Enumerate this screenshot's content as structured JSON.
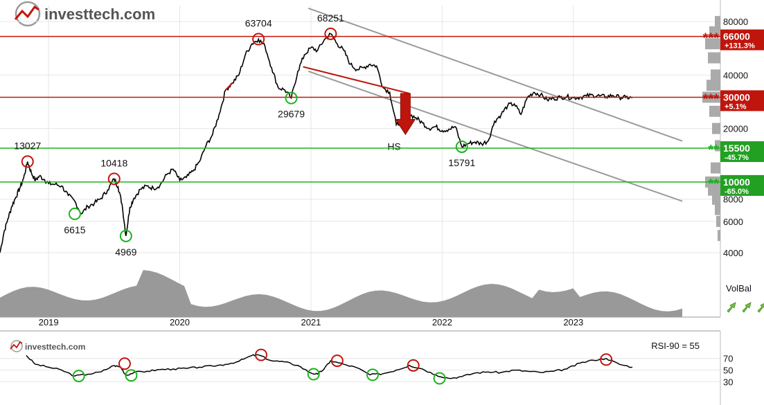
{
  "brand": {
    "name": "investtech.com",
    "name_small": "investtech.com"
  },
  "colors": {
    "price": "#000000",
    "red": "#c0150c",
    "green": "#1db31d",
    "gray": "#9a9a9a",
    "grid": "#e6e6e6",
    "resistance_bg": "#c0150c",
    "support_bg": "#22a022"
  },
  "chart_data": [
    {
      "type": "line",
      "scale": "log",
      "ylim": [
        4000,
        90000
      ],
      "y_ticks": [
        4000,
        6000,
        8000,
        10000,
        20000,
        40000,
        80000
      ],
      "x_ticks": [
        {
          "label": "2019",
          "x": 2019.0
        },
        {
          "label": "2020",
          "x": 2020.0
        },
        {
          "label": "2021",
          "x": 2021.0
        },
        {
          "label": "2022",
          "x": 2022.0
        },
        {
          "label": "2023",
          "x": 2023.0
        }
      ],
      "xlim": [
        2018.63,
        2023.83
      ],
      "series": [
        {
          "x": [
            2018.63,
            2018.66,
            2018.69,
            2018.72,
            2018.75,
            2018.78,
            2018.81,
            2018.84,
            2018.87,
            2018.9,
            2018.93,
            2018.97,
            2019.0,
            2019.05,
            2019.1,
            2019.15,
            2019.2,
            2019.25,
            2019.3,
            2019.35,
            2019.4,
            2019.45,
            2019.5,
            2019.53,
            2019.56,
            2019.59,
            2019.62,
            2019.65,
            2019.7,
            2019.75,
            2019.8,
            2019.85,
            2019.9,
            2019.95,
            2020.0,
            2020.05,
            2020.1,
            2020.15,
            2020.2,
            2020.25,
            2020.3,
            2020.35,
            2020.4,
            2020.45,
            2020.5,
            2020.55,
            2020.6,
            2020.65,
            2020.7,
            2020.75,
            2020.8,
            2020.85,
            2020.9,
            2020.95,
            2021.0,
            2021.05,
            2021.1,
            2021.15,
            2021.2,
            2021.25,
            2021.3,
            2021.35,
            2021.4,
            2021.45,
            2021.5,
            2021.55,
            2021.6,
            2021.65,
            2021.7,
            2021.75,
            2021.8,
            2021.85,
            2021.9,
            2021.95,
            2022.0,
            2022.05,
            2022.1,
            2022.15,
            2022.2,
            2022.25,
            2022.3,
            2022.35,
            2022.4,
            2022.45,
            2022.5,
            2022.55,
            2022.6,
            2022.65,
            2022.7,
            2022.75,
            2022.8,
            2022.85,
            2022.9,
            2022.95,
            2023.0,
            2023.05,
            2023.1,
            2023.15,
            2023.2,
            2023.25,
            2023.3,
            2023.35,
            2023.4,
            2023.45
          ],
          "y": [
            4000,
            5200,
            6200,
            7300,
            8200,
            9200,
            10500,
            13027,
            11200,
            10200,
            10800,
            10300,
            9800,
            9700,
            9500,
            8400,
            7800,
            6615,
            7300,
            7600,
            8100,
            9000,
            10418,
            9400,
            7500,
            4969,
            7200,
            8100,
            9100,
            9500,
            9200,
            9600,
            11000,
            11800,
            10200,
            10600,
            11500,
            13000,
            16000,
            18500,
            24000,
            33000,
            36000,
            40000,
            52000,
            60000,
            63704,
            58000,
            44000,
            34000,
            33000,
            29679,
            42000,
            52000,
            57000,
            55000,
            63000,
            68251,
            60000,
            55000,
            46000,
            43000,
            44000,
            46000,
            45000,
            34000,
            32000,
            21000,
            22000,
            24000,
            23000,
            21500,
            20000,
            20500,
            19500,
            19800,
            20500,
            15791,
            16500,
            16800,
            16400,
            17000,
            22000,
            24000,
            27000,
            27500,
            24000,
            30000,
            32000,
            31000,
            29000,
            29500,
            30000,
            30200,
            29800,
            30000,
            30500,
            30800,
            30500,
            30200,
            30700,
            30000,
            29900,
            29800
          ],
          "red_segment_x": [
            2020.33,
            2020.42
          ]
        }
      ],
      "levels": [
        {
          "value": 66000,
          "label": "66000",
          "change": "+131.3%",
          "stars": "***",
          "type": "resistance"
        },
        {
          "value": 30000,
          "label": "30000",
          "change": "+5.1%",
          "stars": "***",
          "type": "resistance"
        },
        {
          "value": 15500,
          "label": "15500",
          "change": "-45.7%",
          "stars": "**",
          "type": "support"
        },
        {
          "value": 10000,
          "label": "10000",
          "change": "-65.0%",
          "stars": "**",
          "type": "support"
        }
      ],
      "annotations": [
        {
          "text": "13027",
          "x": 2018.84,
          "y": 13027,
          "marker": "red"
        },
        {
          "text": "6615",
          "x": 2019.2,
          "y": 6615,
          "marker": "green"
        },
        {
          "text": "10418",
          "x": 2019.5,
          "y": 10418,
          "marker": "red"
        },
        {
          "text": "4969",
          "x": 2019.59,
          "y": 4969,
          "marker": "green"
        },
        {
          "text": "63704",
          "x": 2020.6,
          "y": 63704,
          "marker": "red"
        },
        {
          "text": "29679",
          "x": 2020.85,
          "y": 29679,
          "marker": "green"
        },
        {
          "text": "68251",
          "x": 2021.15,
          "y": 68251,
          "marker": "red"
        },
        {
          "text": "15791",
          "x": 2022.15,
          "y": 15791,
          "marker": "green"
        }
      ],
      "pattern": {
        "text": "HS",
        "neckline": [
          [
            2020.94,
            44500
          ],
          [
            2021.75,
            31500
          ]
        ],
        "arrow_x": 2021.72,
        "arrow_from": 31500,
        "arrow_to": 18500
      },
      "trend_channel": {
        "upper": [
          [
            2020.98,
            95000
          ],
          [
            2023.83,
            17000
          ]
        ],
        "lower": [
          [
            2020.98,
            42000
          ],
          [
            2023.83,
            7800
          ]
        ]
      },
      "volume_balance": {
        "label": "VolBal",
        "arrows": [
          "up",
          "up",
          "up"
        ]
      }
    },
    {
      "type": "line",
      "title": "RSI-90 = 55",
      "ylim": [
        20,
        85
      ],
      "y_ticks": [
        30,
        50,
        70
      ],
      "series": [
        {
          "x": [
            2018.83,
            2018.9,
            2019.0,
            2019.1,
            2019.2,
            2019.3,
            2019.4,
            2019.5,
            2019.55,
            2019.59,
            2019.65,
            2019.75,
            2019.85,
            2019.95,
            2020.05,
            2020.15,
            2020.25,
            2020.35,
            2020.45,
            2020.55,
            2020.6,
            2020.7,
            2020.8,
            2020.9,
            2021.0,
            2021.05,
            2021.1,
            2021.15,
            2021.25,
            2021.35,
            2021.45,
            2021.55,
            2021.65,
            2021.75,
            2021.85,
            2021.95,
            2022.05,
            2022.15,
            2022.25,
            2022.35,
            2022.45,
            2022.55,
            2022.65,
            2022.75,
            2022.85,
            2022.95,
            2023.05,
            2023.15,
            2023.25,
            2023.35,
            2023.45
          ],
          "y": [
            75,
            60,
            55,
            50,
            40,
            43,
            47,
            58,
            55,
            41,
            46,
            48,
            51,
            52,
            53,
            55,
            57,
            60,
            65,
            75,
            76,
            66,
            64,
            58,
            45,
            43,
            52,
            66,
            60,
            54,
            42,
            44,
            50,
            58,
            52,
            42,
            36,
            39,
            45,
            47,
            46,
            50,
            48,
            46,
            48,
            52,
            62,
            67,
            70,
            60,
            55
          ]
        }
      ],
      "markers": [
        {
          "x": 2019.23,
          "y": 40,
          "color": "green"
        },
        {
          "x": 2019.58,
          "y": 61,
          "color": "red"
        },
        {
          "x": 2019.63,
          "y": 41,
          "color": "green"
        },
        {
          "x": 2020.62,
          "y": 76,
          "color": "red"
        },
        {
          "x": 2021.02,
          "y": 43,
          "color": "green"
        },
        {
          "x": 2021.2,
          "y": 66,
          "color": "red"
        },
        {
          "x": 2021.47,
          "y": 42,
          "color": "green"
        },
        {
          "x": 2021.78,
          "y": 58,
          "color": "red"
        },
        {
          "x": 2021.98,
          "y": 36,
          "color": "green"
        },
        {
          "x": 2023.25,
          "y": 68,
          "color": "red"
        }
      ]
    }
  ]
}
